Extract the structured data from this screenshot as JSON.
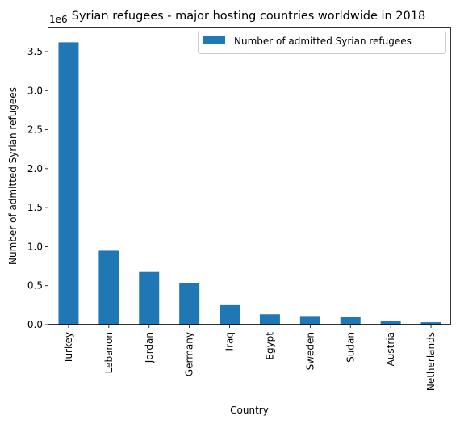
{
  "chart_data": {
    "type": "bar",
    "title": "Syrian refugees - major hosting countries worldwide in 2018",
    "xlabel": "Country",
    "ylabel": "Number of admitted Syrian refugees",
    "offset_text": "1e6",
    "categories": [
      "Turkey",
      "Lebanon",
      "Jordan",
      "Germany",
      "Iraq",
      "Egypt",
      "Sweden",
      "Sudan",
      "Austria",
      "Netherlands"
    ],
    "series": [
      {
        "name": "Number of admitted Syrian refugees",
        "values": [
          3.62,
          0.948,
          0.676,
          0.532,
          0.25,
          0.132,
          0.11,
          0.093,
          0.049,
          0.03
        ]
      }
    ],
    "ylim": [
      0,
      3.8
    ],
    "yticks": [
      0.0,
      0.5,
      1.0,
      1.5,
      2.0,
      2.5,
      3.0,
      3.5
    ],
    "ytick_labels": [
      "0.0",
      "0.5",
      "1.0",
      "1.5",
      "2.0",
      "2.5",
      "3.0",
      "3.5"
    ],
    "legend_position": "upper right",
    "grid": false,
    "colors": {
      "bar": "#1f77b4"
    }
  }
}
